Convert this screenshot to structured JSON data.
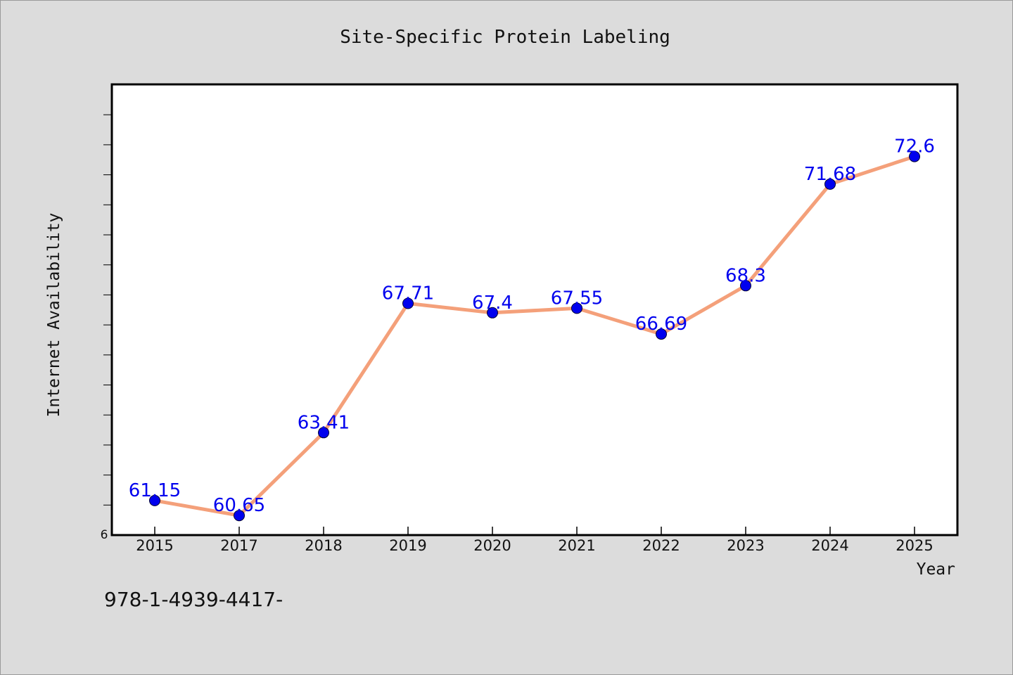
{
  "chart_data": {
    "type": "line",
    "title": "Site-Specific Protein Labeling",
    "xlabel": "Year",
    "ylabel": "Internet Availability",
    "categories": [
      "2015",
      "2017",
      "2018",
      "2019",
      "2020",
      "2021",
      "2022",
      "2023",
      "2024",
      "2025"
    ],
    "values": [
      61.15,
      60.65,
      63.41,
      67.71,
      67.4,
      67.55,
      66.69,
      68.3,
      71.68,
      72.6
    ],
    "data_labels": [
      "61.15",
      "60.65",
      "63.41",
      "67.71",
      "67.4",
      "67.55",
      "66.69",
      "68.3",
      "71.68",
      "72.6"
    ],
    "y_tick_label": "6",
    "ylim": [
      60.0,
      75.0
    ],
    "grid": false,
    "legend": "none",
    "line_color": "#f4a07a",
    "marker_color": "#0000ee",
    "label_color": "#0000ee"
  },
  "footer": {
    "code": "978-1-4939-4417-"
  }
}
